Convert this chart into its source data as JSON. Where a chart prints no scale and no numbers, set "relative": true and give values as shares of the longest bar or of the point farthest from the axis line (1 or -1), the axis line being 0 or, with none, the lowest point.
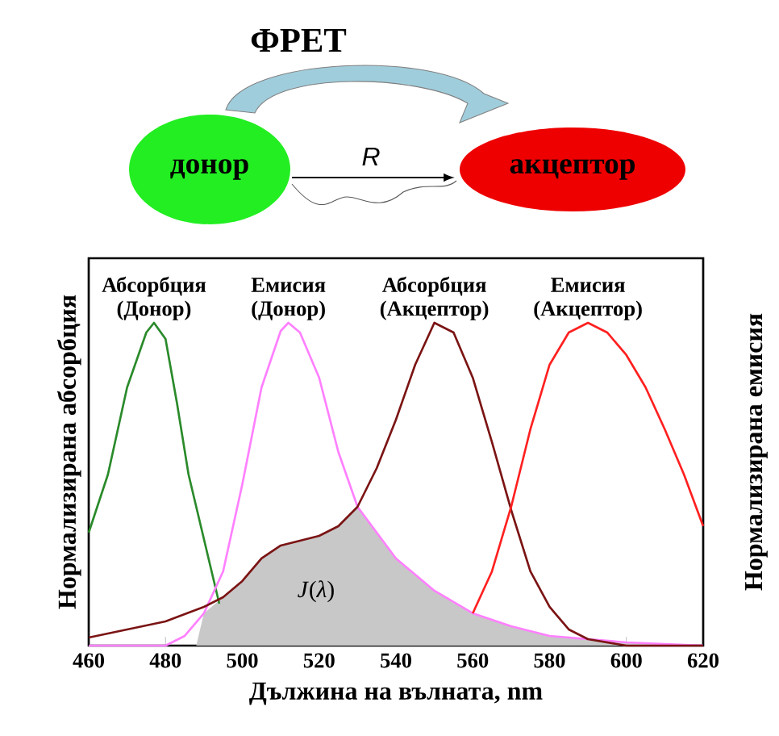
{
  "chart_data": {
    "type": "line",
    "title": "ФРЕТ",
    "xlabel": "Дължина на вълната, nm",
    "ylabel": "Нормализирана абсорбция",
    "y2label": "Нормализирана емисия",
    "relative": true,
    "xlim": [
      460,
      620
    ],
    "xticks": [
      460,
      480,
      500,
      520,
      540,
      560,
      580,
      600,
      620
    ],
    "annotations": [
      "донор",
      "R",
      "акцептор",
      "*J*(*λ*)"
    ],
    "series": [
      {
        "type": "area",
        "color": "#c8c8c8",
        "x": [
          488,
          490,
          495,
          500,
          505,
          510,
          520,
          525,
          530,
          540,
          550,
          560,
          570,
          580,
          600,
          620
        ],
        "values": [
          0,
          0.1,
          0.15,
          0.2,
          0.27,
          0.31,
          0.34,
          0.37,
          0.43,
          0.27,
          0.17,
          0.1,
          0.06,
          0.03,
          0.01,
          0
        ]
      },
      {
        "name": "Абсорбция (Донор)",
        "color": "#2a8a2a",
        "x": [
          460,
          465,
          470,
          475,
          477,
          480,
          483,
          486,
          490,
          494
        ],
        "values": [
          0.35,
          0.53,
          0.8,
          0.97,
          1.0,
          0.95,
          0.75,
          0.53,
          0.33,
          0.13
        ]
      },
      {
        "name": "Емисия (Донор)",
        "color": "#ff80ff",
        "x": [
          460,
          480,
          485,
          490,
          495,
          500,
          505,
          510,
          512,
          515,
          520,
          525,
          530,
          540,
          550,
          560,
          570,
          580,
          600,
          620
        ],
        "values": [
          0,
          0,
          0.03,
          0.1,
          0.23,
          0.5,
          0.8,
          0.975,
          1.0,
          0.97,
          0.83,
          0.6,
          0.43,
          0.27,
          0.17,
          0.1,
          0.06,
          0.03,
          0.01,
          0
        ]
      },
      {
        "name": "Абсорбция (Акцептор)",
        "color": "#7b1414",
        "x": [
          460,
          470,
          480,
          490,
          495,
          500,
          505,
          510,
          520,
          525,
          530,
          535,
          540,
          545,
          550,
          555,
          560,
          565,
          570,
          575,
          580,
          585,
          590,
          600,
          620
        ],
        "values": [
          0.025,
          0.05,
          0.075,
          0.12,
          0.15,
          0.2,
          0.27,
          0.31,
          0.34,
          0.37,
          0.43,
          0.55,
          0.7,
          0.87,
          1.0,
          0.97,
          0.83,
          0.63,
          0.42,
          0.23,
          0.12,
          0.05,
          0.02,
          0,
          0
        ]
      },
      {
        "name": "Емисия (Акцептор)",
        "color": "#ff2020",
        "x": [
          560,
          565,
          570,
          575,
          580,
          585,
          590,
          595,
          600,
          605,
          610,
          615,
          620
        ],
        "values": [
          0.1,
          0.23,
          0.43,
          0.67,
          0.87,
          0.97,
          1.0,
          0.97,
          0.9,
          0.8,
          0.67,
          0.53,
          0.37
        ]
      }
    ]
  }
}
